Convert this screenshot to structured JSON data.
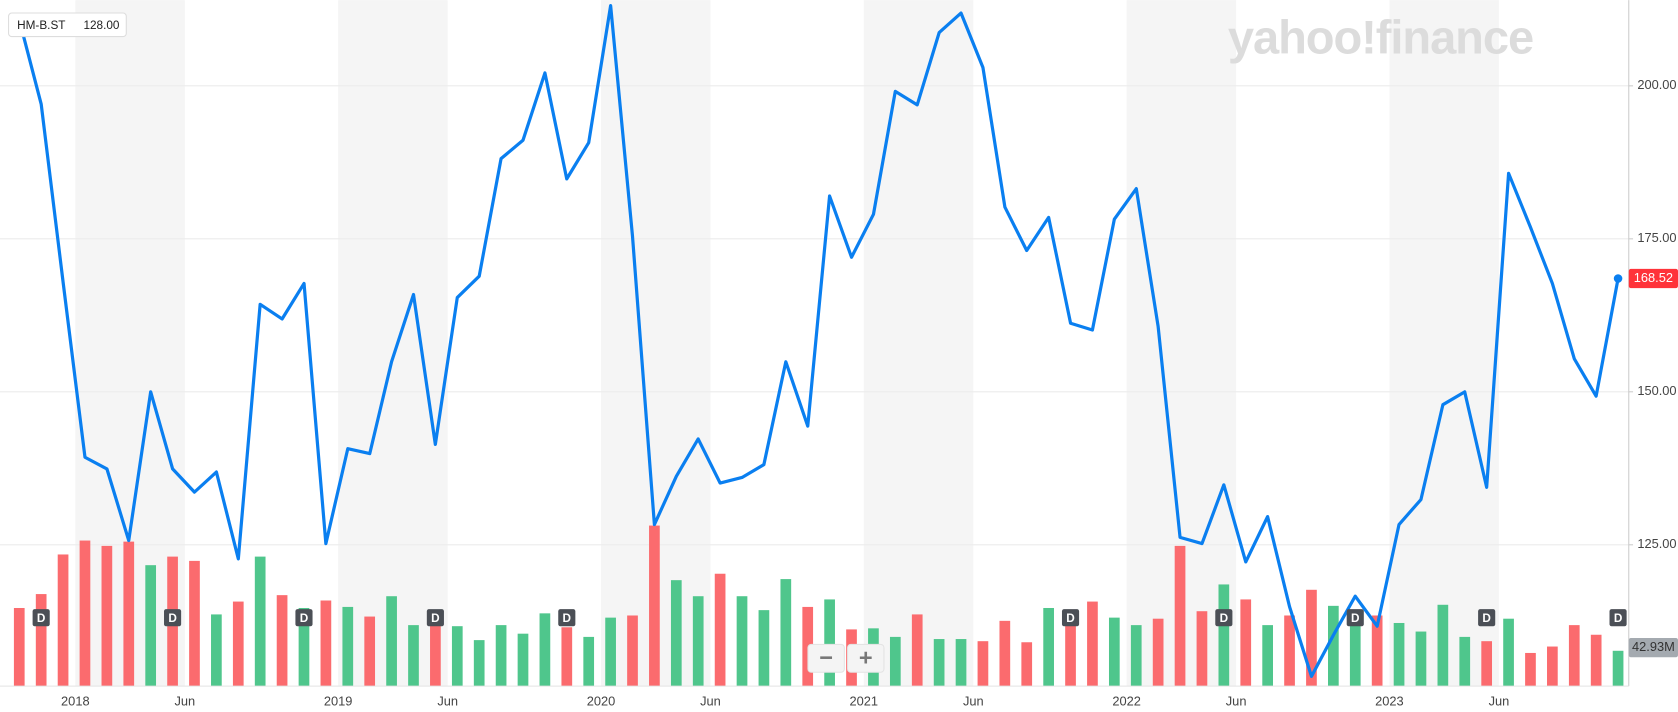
{
  "chart_data": {
    "type": "line",
    "watermark": "yahoo!finance",
    "legend_box": {
      "symbol": "HM-B.ST",
      "value": "128.00"
    },
    "zoom": {
      "out": "−",
      "in": "+"
    },
    "categories": [
      null,
      null,
      null,
      "2018",
      null,
      null,
      null,
      null,
      "Jun",
      null,
      null,
      null,
      null,
      null,
      null,
      "2019",
      null,
      null,
      null,
      null,
      "Jun",
      null,
      null,
      null,
      null,
      null,
      null,
      "2020",
      null,
      null,
      null,
      null,
      "Jun",
      null,
      null,
      null,
      null,
      null,
      null,
      "2021",
      null,
      null,
      null,
      null,
      "Jun",
      null,
      null,
      null,
      null,
      null,
      null,
      "2022",
      null,
      null,
      null,
      null,
      "Jun",
      null,
      null,
      null,
      null,
      null,
      null,
      "2023",
      null,
      null,
      null,
      null,
      "Jun",
      null,
      null,
      null,
      null,
      null
    ],
    "events": [
      null,
      "D",
      null,
      null,
      null,
      null,
      null,
      "D",
      null,
      null,
      null,
      null,
      null,
      "D",
      null,
      null,
      null,
      null,
      null,
      "D",
      null,
      null,
      null,
      null,
      null,
      "D",
      null,
      null,
      null,
      null,
      null,
      null,
      null,
      null,
      null,
      null,
      null,
      null,
      null,
      null,
      null,
      null,
      null,
      null,
      null,
      null,
      null,
      null,
      "D",
      null,
      null,
      null,
      null,
      null,
      null,
      "D",
      null,
      null,
      null,
      null,
      null,
      "D",
      null,
      null,
      null,
      null,
      null,
      "D",
      null,
      null,
      null,
      null,
      null,
      "D"
    ],
    "series": [
      {
        "name": "HM-B.ST",
        "color": "#0a7ff0",
        "values": [
          210.8,
          197.0,
          168.0,
          139.3,
          137.4,
          125.7,
          150.0,
          137.4,
          133.6,
          136.9,
          122.7,
          164.3,
          161.9,
          167.7,
          125.2,
          140.7,
          139.9,
          154.9,
          165.9,
          141.4,
          165.4,
          168.9,
          188.1,
          191.1,
          202.1,
          184.8,
          190.7,
          213.1,
          175.5,
          128.3,
          136.2,
          142.3,
          135.1,
          136.0,
          138.1,
          154.9,
          144.4,
          182.0,
          172.0,
          179.0,
          199.1,
          196.9,
          208.7,
          211.9,
          203.0,
          180.2,
          173.1,
          178.5,
          161.2,
          160.1,
          178.2,
          183.2,
          160.7,
          126.2,
          125.2,
          134.8,
          122.2,
          129.6,
          114.9,
          103.5,
          110.2,
          116.6,
          111.7,
          128.3,
          132.4,
          147.9,
          150.0,
          134.4,
          185.7,
          176.9,
          167.7,
          155.4,
          149.3,
          168.52
        ]
      },
      {
        "name": "Volume",
        "type": "bar",
        "axis": "y2",
        "up_color": "#4fc68c",
        "down_color": "#fb6b6e",
        "values": [
          94.9,
          111.8,
          159.9,
          176.8,
          170.3,
          175.5,
          146.9,
          157.3,
          152.1,
          87.1,
          102.7,
          157.3,
          110.5,
          94.9,
          104.0,
          96.2,
          84.5,
          109.2,
          74.1,
          81.9,
          72.8,
          55.9,
          74.1,
          63.7,
          88.4,
          71.5,
          59.8,
          83.2,
          85.8,
          195.0,
          128.7,
          109.2,
          136.5,
          109.2,
          92.3,
          130.0,
          96.2,
          105.3,
          68.9,
          70.2,
          59.8,
          87.1,
          57.2,
          57.2,
          54.6,
          79.3,
          53.3,
          94.9,
          89.7,
          102.7,
          83.2,
          74.1,
          81.9,
          170.3,
          91.0,
          123.5,
          105.3,
          74.1,
          85.8,
          117.0,
          97.5,
          92.3,
          85.8,
          76.7,
          66.3,
          98.8,
          59.8,
          54.6,
          81.9,
          40.3,
          48.1,
          74.1,
          62.4,
          42.93
        ],
        "value_labels": [
          null,
          null,
          null,
          null,
          null,
          null,
          null,
          null,
          null,
          null,
          null,
          null,
          null,
          null,
          null,
          null,
          null,
          null,
          null,
          null,
          null,
          null,
          null,
          null,
          null,
          null,
          null,
          null,
          null,
          null,
          null,
          null,
          null,
          null,
          null,
          null,
          null,
          null,
          null,
          null,
          null,
          null,
          null,
          null,
          null,
          null,
          null,
          null,
          null,
          null,
          null,
          null,
          null,
          null,
          null,
          null,
          null,
          null,
          null,
          null,
          null,
          null,
          null,
          null,
          null,
          null,
          null,
          null,
          null,
          null,
          null,
          null,
          null,
          "42.93M"
        ]
      }
    ],
    "ylim": [
      101.9,
      214
    ],
    "yticks": [
      {
        "value": 125,
        "label": "125.00"
      },
      {
        "value": 150,
        "label": "150.00"
      },
      {
        "value": 175,
        "label": "175.00"
      },
      {
        "value": 200,
        "label": "200.00"
      }
    ],
    "y2lim": [
      0,
      833
    ],
    "grid": true
  }
}
